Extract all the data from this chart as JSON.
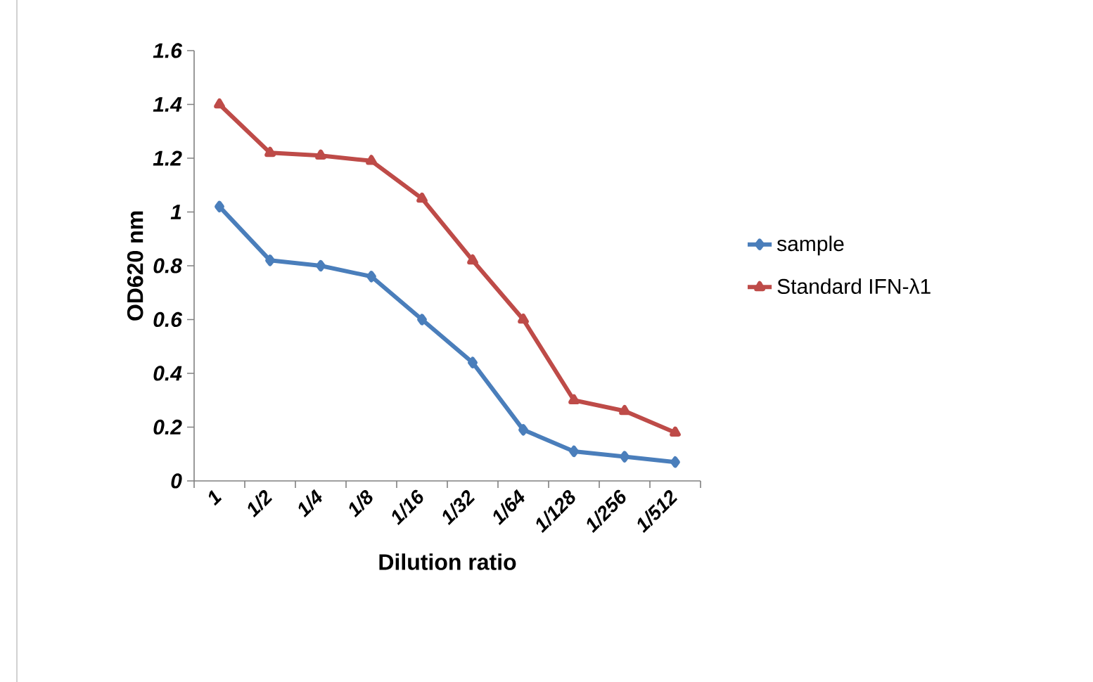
{
  "chart_data": {
    "type": "line",
    "xlabel": "Dilution ratio",
    "ylabel": "OD620 nm",
    "categories": [
      "1",
      "1/2",
      "1/4",
      "1/8",
      "1/16",
      "1/32",
      "1/64",
      "1/128",
      "1/256",
      "1/512"
    ],
    "series": [
      {
        "name": "sample",
        "color": "#4a7ebb",
        "marker": "diamond",
        "values": [
          1.02,
          0.82,
          0.8,
          0.76,
          0.6,
          0.44,
          0.19,
          0.11,
          0.09,
          0.07
        ]
      },
      {
        "name": "Standard IFN-λ1",
        "color": "#be4b48",
        "marker": "triangle",
        "values": [
          1.4,
          1.22,
          1.21,
          1.19,
          1.05,
          0.82,
          0.6,
          0.3,
          0.26,
          0.18
        ]
      }
    ],
    "ylim": [
      0,
      1.6
    ],
    "yticks": [
      0,
      0.2,
      0.4,
      0.6,
      0.8,
      1,
      1.2,
      1.4,
      1.6
    ],
    "grid": false,
    "legend": "right",
    "line_style": "solid"
  }
}
